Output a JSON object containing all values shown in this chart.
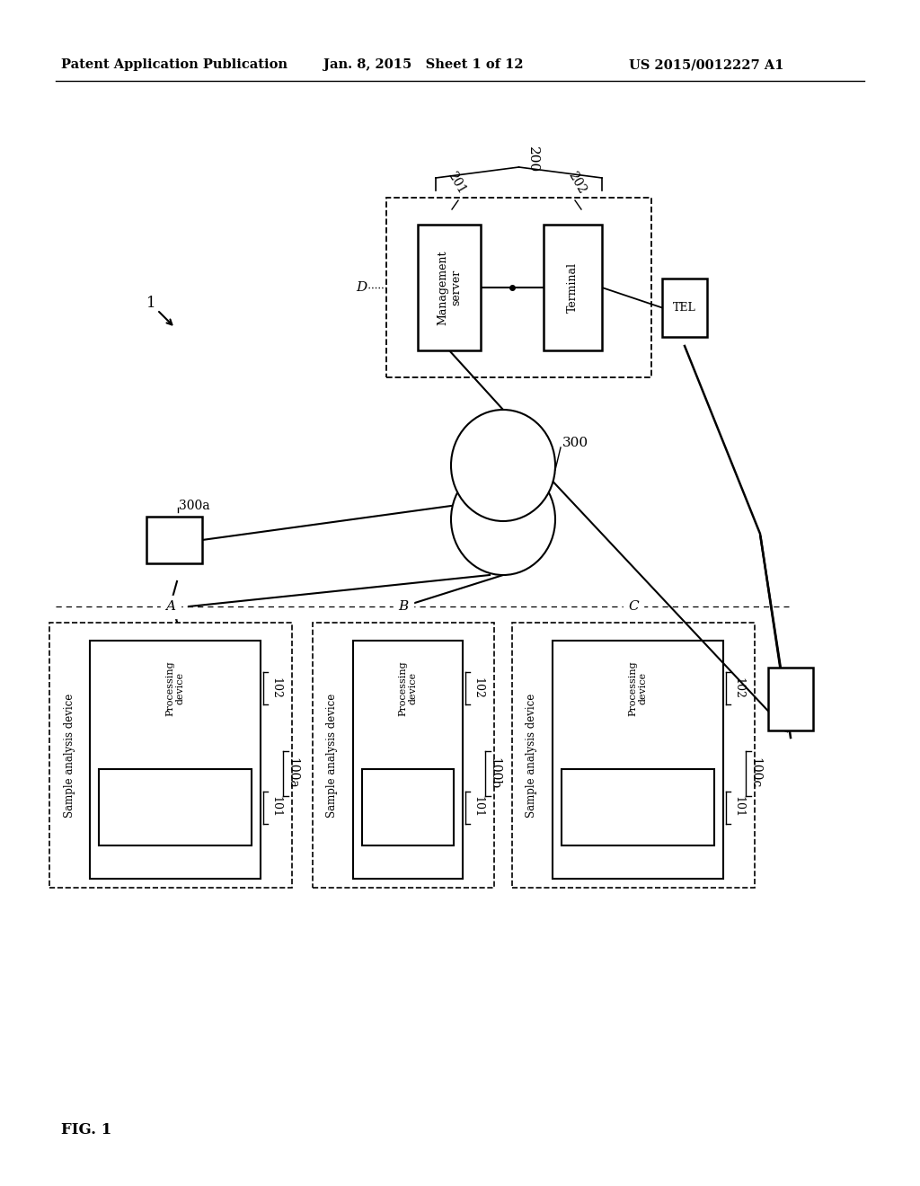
{
  "bg_color": "#ffffff",
  "header_left": "Patent Application Publication",
  "header_mid": "Jan. 8, 2015   Sheet 1 of 12",
  "header_right": "US 2015/0012227 A1",
  "fig_label": "FIG. 1"
}
